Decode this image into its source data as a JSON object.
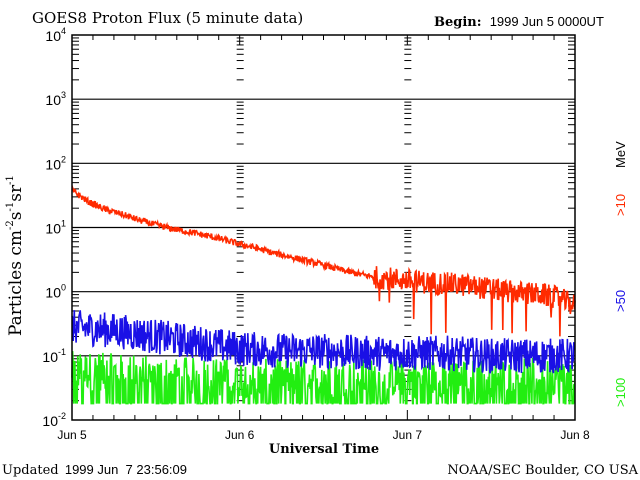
{
  "chart_data": {
    "type": "line",
    "title": "GOES8 Proton Flux (5 minute data)",
    "begin_label": "Begin:",
    "begin_value": "1999 Jun 5 0000UT",
    "xlabel": "Universal Time",
    "ylabel": {
      "base": "Particles cm",
      "exp1": "-2",
      "mid1": "s",
      "exp2": "-1",
      "mid2": "sr",
      "exp3": "-1"
    },
    "yscale": "log",
    "ylim": [
      0.01,
      10000
    ],
    "xlim_days": [
      0,
      3
    ],
    "y_ticks": [
      {
        "base": "10",
        "exp": "4",
        "value": 10000
      },
      {
        "base": "10",
        "exp": "3",
        "value": 1000
      },
      {
        "base": "10",
        "exp": "2",
        "value": 100
      },
      {
        "base": "10",
        "exp": "1",
        "value": 10
      },
      {
        "base": "10",
        "exp": "0",
        "value": 1
      },
      {
        "base": "10",
        "exp": "-1",
        "value": 0.1
      },
      {
        "base": "10",
        "exp": "-2",
        "value": 0.01
      }
    ],
    "x_ticks": [
      {
        "label": "Jun 5",
        "day": 0
      },
      {
        "label": "Jun 6",
        "day": 1
      },
      {
        "label": "Jun 7",
        "day": 2
      },
      {
        "label": "Jun 8",
        "day": 3
      }
    ],
    "grid": true,
    "unit_label": "MeV",
    "series": [
      {
        "name": ">10",
        "color": "#ff2a00",
        "days": [
          0,
          0.1,
          0.2,
          0.3,
          0.4,
          0.5,
          0.6,
          0.7,
          0.8,
          0.9,
          1.0,
          1.1,
          1.2,
          1.3,
          1.4,
          1.5,
          1.6,
          1.7,
          1.8,
          1.9,
          2.0,
          2.1,
          2.2,
          2.3,
          2.4,
          2.5,
          2.6,
          2.7,
          2.8,
          2.9,
          3.0
        ],
        "values": [
          38,
          25,
          19,
          16,
          13,
          11,
          9.5,
          8.5,
          7.5,
          6.5,
          5.5,
          4.8,
          4.0,
          3.5,
          3.0,
          2.6,
          2.2,
          1.9,
          1.7,
          1.6,
          1.5,
          1.4,
          1.35,
          1.3,
          1.2,
          1.1,
          1.0,
          0.95,
          0.9,
          0.8,
          0.6
        ]
      },
      {
        "name": ">50",
        "color": "#1a10e6",
        "days": [
          0,
          0.25,
          0.5,
          0.75,
          1.0,
          1.25,
          1.5,
          1.75,
          2.0,
          2.25,
          2.5,
          2.75,
          3.0
        ],
        "values": [
          0.28,
          0.25,
          0.2,
          0.16,
          0.13,
          0.12,
          0.12,
          0.11,
          0.11,
          0.11,
          0.1,
          0.1,
          0.1
        ]
      },
      {
        "name": ">100",
        "color": "#22ee11",
        "days": [
          0,
          0.5,
          1.0,
          1.5,
          2.0,
          2.5,
          3.0
        ],
        "values": [
          0.06,
          0.05,
          0.045,
          0.045,
          0.045,
          0.045,
          0.05
        ],
        "floor": 0.018
      }
    ]
  },
  "footer": {
    "updated_label": "Updated",
    "updated_value": "1999 Jun  7 23:56:09",
    "credit": "NOAA/SEC Boulder, CO USA"
  }
}
